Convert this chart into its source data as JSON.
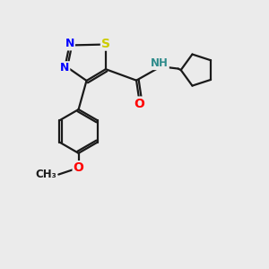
{
  "background_color": "#ebebeb",
  "bond_color": "#1a1a1a",
  "line_width": 1.6,
  "atom_colors": {
    "N": "#0000ff",
    "S": "#cccc00",
    "O": "#ff0000",
    "NH": "#2e8b8b",
    "C": "#1a1a1a"
  },
  "font_size": 9,
  "fig_width": 3.0,
  "fig_height": 3.0,
  "dpi": 100
}
